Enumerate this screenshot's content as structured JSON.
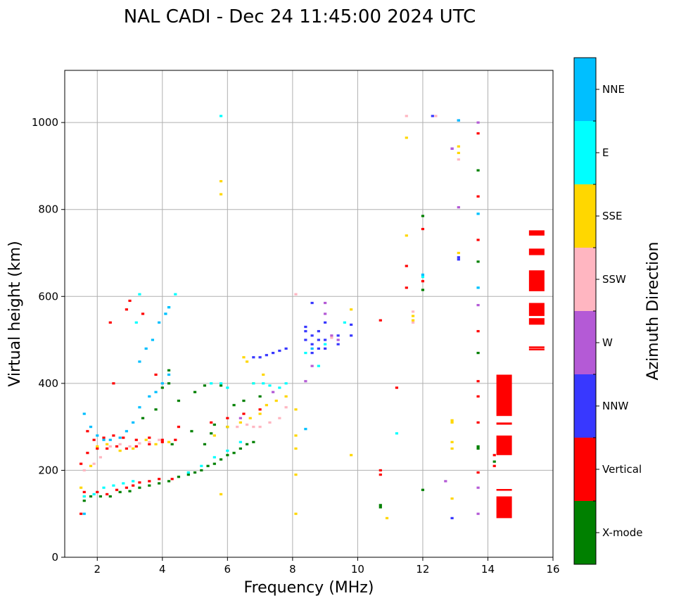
{
  "chart_data": {
    "type": "scatter",
    "title": "NAL CADI - Dec 24 11:45:00 2024 UTC",
    "xlabel": "Frequency (MHz)",
    "ylabel": "Virtual height (km)",
    "xlim": [
      1,
      16
    ],
    "ylim": [
      0,
      1120
    ],
    "xticks": [
      2,
      4,
      6,
      8,
      10,
      12,
      14,
      16
    ],
    "yticks": [
      0,
      200,
      400,
      600,
      800,
      1000
    ],
    "grid": true,
    "colorbar": {
      "label": "Azimuth Direction",
      "categories": [
        {
          "name": "X-mode",
          "color": "#008000"
        },
        {
          "name": "Vertical",
          "color": "#ff0000"
        },
        {
          "name": "NNW",
          "color": "#3838ff"
        },
        {
          "name": "W",
          "color": "#b45ad6"
        },
        {
          "name": "SSW",
          "color": "#ffb6c1"
        },
        {
          "name": "SSE",
          "color": "#ffd700"
        },
        {
          "name": "E",
          "color": "#00ffff"
        },
        {
          "name": "NNE",
          "color": "#00bfff"
        }
      ]
    },
    "series": [
      {
        "name": "X-mode",
        "points": [
          [
            1.6,
            130
          ],
          [
            1.8,
            140
          ],
          [
            2.1,
            140
          ],
          [
            2.4,
            140
          ],
          [
            2.7,
            150
          ],
          [
            3.0,
            152
          ],
          [
            3.3,
            160
          ],
          [
            3.6,
            165
          ],
          [
            3.9,
            170
          ],
          [
            4.2,
            175
          ],
          [
            4.5,
            185
          ],
          [
            4.8,
            190
          ],
          [
            5.0,
            195
          ],
          [
            5.2,
            200
          ],
          [
            5.4,
            210
          ],
          [
            5.6,
            215
          ],
          [
            5.8,
            225
          ],
          [
            6.0,
            235
          ],
          [
            6.2,
            240
          ],
          [
            6.4,
            250
          ],
          [
            6.6,
            260
          ],
          [
            6.8,
            265
          ],
          [
            4.0,
            390
          ],
          [
            4.2,
            400
          ],
          [
            4.2,
            430
          ],
          [
            3.8,
            340
          ],
          [
            4.5,
            360
          ],
          [
            5.0,
            380
          ],
          [
            5.3,
            395
          ],
          [
            5.8,
            395
          ],
          [
            6.2,
            350
          ],
          [
            6.5,
            360
          ],
          [
            7.0,
            370
          ],
          [
            3.4,
            320
          ],
          [
            5.6,
            305
          ],
          [
            4.9,
            290
          ],
          [
            5.5,
            285
          ],
          [
            6.0,
            300
          ],
          [
            5.3,
            260
          ],
          [
            4.3,
            260
          ],
          [
            10.7,
            115
          ],
          [
            10.7,
            120
          ],
          [
            12.0,
            155
          ],
          [
            12.0,
            615
          ],
          [
            12.0,
            785
          ],
          [
            13.7,
            250
          ],
          [
            13.7,
            255
          ],
          [
            13.7,
            470
          ],
          [
            13.7,
            680
          ],
          [
            13.7,
            890
          ],
          [
            14.2,
            220
          ]
        ]
      },
      {
        "name": "Vertical",
        "points": [
          [
            1.5,
            100
          ],
          [
            1.6,
            150
          ],
          [
            2.0,
            150
          ],
          [
            2.3,
            145
          ],
          [
            2.6,
            155
          ],
          [
            2.9,
            160
          ],
          [
            3.1,
            165
          ],
          [
            3.3,
            172
          ],
          [
            3.6,
            175
          ],
          [
            3.9,
            180
          ],
          [
            4.3,
            180
          ],
          [
            1.5,
            215
          ],
          [
            1.7,
            240
          ],
          [
            2.0,
            250
          ],
          [
            2.3,
            250
          ],
          [
            2.6,
            255
          ],
          [
            2.9,
            250
          ],
          [
            3.2,
            255
          ],
          [
            3.6,
            260
          ],
          [
            4.0,
            265
          ],
          [
            4.4,
            270
          ],
          [
            1.7,
            290
          ],
          [
            1.9,
            270
          ],
          [
            2.2,
            275
          ],
          [
            2.5,
            280
          ],
          [
            2.8,
            275
          ],
          [
            3.2,
            270
          ],
          [
            3.6,
            275
          ],
          [
            4.0,
            270
          ],
          [
            2.4,
            540
          ],
          [
            2.9,
            570
          ],
          [
            3.0,
            590
          ],
          [
            3.4,
            560
          ],
          [
            2.5,
            400
          ],
          [
            3.8,
            420
          ],
          [
            4.5,
            300
          ],
          [
            5.5,
            310
          ],
          [
            6.0,
            320
          ],
          [
            6.5,
            330
          ],
          [
            7.0,
            340
          ],
          [
            10.7,
            200
          ],
          [
            10.7,
            190
          ],
          [
            10.7,
            545
          ],
          [
            11.2,
            390
          ],
          [
            11.5,
            620
          ],
          [
            11.5,
            670
          ],
          [
            12.0,
            635
          ],
          [
            12.0,
            755
          ],
          [
            13.7,
            195
          ],
          [
            13.7,
            310
          ],
          [
            13.7,
            370
          ],
          [
            13.7,
            405
          ],
          [
            13.7,
            520
          ],
          [
            13.7,
            730
          ],
          [
            13.7,
            830
          ],
          [
            13.7,
            975
          ],
          [
            14.2,
            210
          ],
          [
            14.2,
            235
          ]
        ]
      },
      {
        "name": "NNW",
        "points": [
          [
            6.8,
            460
          ],
          [
            7.0,
            460
          ],
          [
            7.2,
            465
          ],
          [
            7.4,
            470
          ],
          [
            7.6,
            475
          ],
          [
            7.8,
            480
          ],
          [
            8.4,
            500
          ],
          [
            8.4,
            520
          ],
          [
            8.6,
            470
          ],
          [
            8.6,
            490
          ],
          [
            8.6,
            510
          ],
          [
            8.8,
            480
          ],
          [
            8.8,
            500
          ],
          [
            8.8,
            520
          ],
          [
            9.0,
            480
          ],
          [
            9.0,
            500
          ],
          [
            9.0,
            540
          ],
          [
            9.4,
            490
          ],
          [
            9.4,
            510
          ],
          [
            9.8,
            510
          ],
          [
            9.8,
            535
          ],
          [
            8.4,
            530
          ],
          [
            8.6,
            585
          ],
          [
            12.9,
            90
          ],
          [
            13.1,
            685
          ],
          [
            13.1,
            690
          ],
          [
            12.9,
            940
          ],
          [
            13.1,
            1005
          ],
          [
            12.3,
            1015
          ]
        ]
      },
      {
        "name": "W",
        "points": [
          [
            6.4,
            320
          ],
          [
            7.4,
            380
          ],
          [
            8.4,
            405
          ],
          [
            8.6,
            440
          ],
          [
            9.0,
            560
          ],
          [
            9.0,
            585
          ],
          [
            9.2,
            510
          ],
          [
            9.4,
            500
          ],
          [
            12.7,
            175
          ],
          [
            13.1,
            805
          ],
          [
            13.7,
            100
          ],
          [
            13.7,
            160
          ],
          [
            13.7,
            580
          ],
          [
            13.7,
            1000
          ],
          [
            12.9,
            940
          ]
        ]
      },
      {
        "name": "SSW",
        "points": [
          [
            1.6,
            200
          ],
          [
            1.9,
            215
          ],
          [
            2.1,
            230
          ],
          [
            2.4,
            255
          ],
          [
            2.7,
            260
          ],
          [
            3.0,
            255
          ],
          [
            3.3,
            262
          ],
          [
            3.6,
            265
          ],
          [
            3.9,
            270
          ],
          [
            6.3,
            300
          ],
          [
            6.6,
            305
          ],
          [
            6.8,
            300
          ],
          [
            7.0,
            300
          ],
          [
            7.3,
            310
          ],
          [
            7.6,
            320
          ],
          [
            7.8,
            345
          ],
          [
            8.1,
            605
          ],
          [
            9.2,
            505
          ],
          [
            11.7,
            540
          ],
          [
            11.7,
            565
          ],
          [
            13.1,
            915
          ],
          [
            12.4,
            1015
          ],
          [
            11.5,
            1015
          ]
        ]
      },
      {
        "name": "SSE",
        "points": [
          [
            1.5,
            160
          ],
          [
            1.6,
            140
          ],
          [
            1.8,
            210
          ],
          [
            2.0,
            255
          ],
          [
            2.3,
            260
          ],
          [
            2.7,
            245
          ],
          [
            3.1,
            250
          ],
          [
            3.5,
            270
          ],
          [
            3.8,
            260
          ],
          [
            4.2,
            265
          ],
          [
            5.6,
            280
          ],
          [
            6.0,
            300
          ],
          [
            6.4,
            310
          ],
          [
            6.7,
            320
          ],
          [
            7.0,
            330
          ],
          [
            7.2,
            350
          ],
          [
            7.5,
            360
          ],
          [
            7.8,
            370
          ],
          [
            6.5,
            460
          ],
          [
            6.6,
            450
          ],
          [
            6.8,
            400
          ],
          [
            7.1,
            420
          ],
          [
            5.8,
            835
          ],
          [
            5.8,
            865
          ],
          [
            5.8,
            145
          ],
          [
            8.1,
            100
          ],
          [
            8.1,
            190
          ],
          [
            8.1,
            250
          ],
          [
            8.1,
            280
          ],
          [
            8.1,
            340
          ],
          [
            9.8,
            570
          ],
          [
            9.8,
            235
          ],
          [
            10.9,
            90
          ],
          [
            11.5,
            740
          ],
          [
            11.5,
            965
          ],
          [
            11.7,
            545
          ],
          [
            11.7,
            555
          ],
          [
            12.9,
            135
          ],
          [
            12.9,
            250
          ],
          [
            12.9,
            265
          ],
          [
            12.9,
            310
          ],
          [
            12.9,
            315
          ],
          [
            13.1,
            700
          ],
          [
            13.1,
            930
          ],
          [
            13.1,
            945
          ]
        ]
      },
      {
        "name": "E",
        "points": [
          [
            1.6,
            140
          ],
          [
            1.9,
            145
          ],
          [
            2.2,
            160
          ],
          [
            2.5,
            165
          ],
          [
            2.8,
            170
          ],
          [
            3.1,
            175
          ],
          [
            4.1,
            560
          ],
          [
            4.2,
            575
          ],
          [
            4.4,
            605
          ],
          [
            3.3,
            605
          ],
          [
            3.2,
            540
          ],
          [
            4.8,
            195
          ],
          [
            5.2,
            210
          ],
          [
            5.6,
            230
          ],
          [
            6.0,
            245
          ],
          [
            6.4,
            265
          ],
          [
            6.8,
            400
          ],
          [
            7.1,
            400
          ],
          [
            7.3,
            395
          ],
          [
            7.6,
            390
          ],
          [
            7.8,
            400
          ],
          [
            5.8,
            400
          ],
          [
            6.0,
            390
          ],
          [
            5.5,
            400
          ],
          [
            8.4,
            470
          ],
          [
            8.8,
            440
          ],
          [
            9.0,
            490
          ],
          [
            9.6,
            540
          ],
          [
            11.2,
            285
          ],
          [
            12.0,
            645
          ],
          [
            13.7,
            790
          ],
          [
            13.7,
            620
          ],
          [
            5.8,
            1015
          ]
        ]
      },
      {
        "name": "NNE",
        "points": [
          [
            1.6,
            330
          ],
          [
            1.8,
            300
          ],
          [
            2.0,
            280
          ],
          [
            2.2,
            270
          ],
          [
            2.4,
            270
          ],
          [
            2.7,
            275
          ],
          [
            2.9,
            290
          ],
          [
            3.1,
            310
          ],
          [
            3.3,
            345
          ],
          [
            3.6,
            370
          ],
          [
            3.8,
            380
          ],
          [
            4.0,
            400
          ],
          [
            4.2,
            420
          ],
          [
            3.3,
            450
          ],
          [
            3.5,
            480
          ],
          [
            3.7,
            500
          ],
          [
            3.9,
            540
          ],
          [
            4.1,
            560
          ],
          [
            4.2,
            575
          ],
          [
            1.6,
            100
          ],
          [
            8.4,
            295
          ],
          [
            8.6,
            480
          ],
          [
            12.0,
            650
          ],
          [
            13.7,
            790
          ],
          [
            13.7,
            620
          ],
          [
            13.1,
            1005
          ]
        ]
      },
      {
        "name": "Vertical",
        "bars": [
          [
            14.5,
            90,
            140
          ],
          [
            14.5,
            155,
            155
          ],
          [
            14.5,
            235,
            280
          ],
          [
            14.5,
            305,
            310
          ],
          [
            14.5,
            325,
            420
          ],
          [
            15.5,
            475,
            478
          ],
          [
            15.5,
            480,
            483
          ],
          [
            15.5,
            535,
            550
          ],
          [
            15.5,
            555,
            585
          ],
          [
            15.5,
            612,
            660
          ],
          [
            15.5,
            695,
            710
          ],
          [
            15.5,
            740,
            752
          ]
        ]
      }
    ]
  }
}
